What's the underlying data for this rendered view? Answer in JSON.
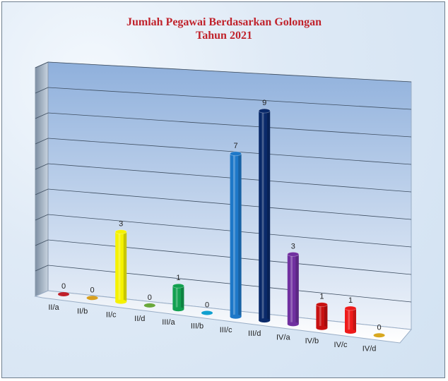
{
  "chart_data": {
    "type": "bar",
    "title": "Jumlah Pegawai Berdasarkan Golongan",
    "subtitle": "Tahun 2021",
    "categories": [
      "II/a",
      "II/b",
      "II/c",
      "II/d",
      "III/a",
      "III/b",
      "III/c",
      "III/d",
      "IV/a",
      "IV/b",
      "IV/c",
      "IV/d"
    ],
    "values": [
      0,
      0,
      3,
      0,
      1,
      0,
      7,
      9,
      3,
      1,
      1,
      0
    ],
    "colors": [
      "#c0202a",
      "#d8a020",
      "#f5f200",
      "#6aa83a",
      "#12a050",
      "#10a0d0",
      "#1e78c8",
      "#0a2a6a",
      "#7030a0",
      "#c81010",
      "#ee1a1a",
      "#d8a820"
    ],
    "ylim": [
      0,
      9
    ],
    "grid": true,
    "legend": "none",
    "data_labels": true
  }
}
